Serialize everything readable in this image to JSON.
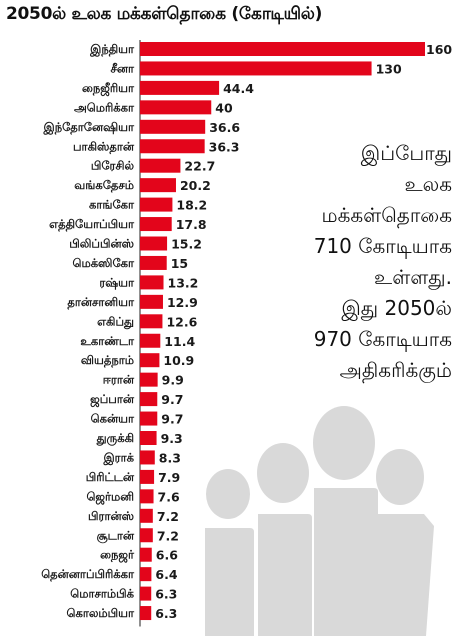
{
  "chart_data": {
    "type": "bar",
    "orientation": "horizontal",
    "title": "2050ல் உலக மக்கள்தொகை (கோடியில்)",
    "categories": [
      "இந்தியா",
      "சீனா",
      "நைஜீரியா",
      "அமெரிக்கா",
      "இந்தோனேஷியா",
      "பாகிஸ்தான்",
      "பிரேசில்",
      "வங்கதேசம்",
      "காங்கோ",
      "எத்தியோப்பியா",
      "பிலிப்பின்ஸ்",
      "மெக்ஸிகோ",
      "ரஷ்யா",
      "தான்சானியா",
      "எகிப்து",
      "உகாண்டா",
      "வியத்நாம்",
      "ஈரான்",
      "ஜப்பான்",
      "கென்யா",
      "துருக்கி",
      "இராக்",
      "பிரிட்டன்",
      "ஜெர்மனி",
      "பிரான்ஸ்",
      "சூடான்",
      "நைஜர்",
      "தென்னாப்பிரிக்கா",
      "மொசாம்பிக்",
      "கொலம்பியா"
    ],
    "values": [
      160,
      130,
      44.4,
      40,
      36.6,
      36.3,
      22.7,
      20.2,
      18.2,
      17.8,
      15.2,
      15,
      13.2,
      12.9,
      12.6,
      11.4,
      10.9,
      9.9,
      9.7,
      9.7,
      9.3,
      8.3,
      7.9,
      7.6,
      7.2,
      7.2,
      6.6,
      6.4,
      6.3,
      6.3
    ],
    "value_labels": [
      "160",
      "130",
      "44.4",
      "40",
      "36.6",
      "36.3",
      "22.7",
      "20.2",
      "18.2",
      "17.8",
      "15.2",
      "15",
      "13.2",
      "12.9",
      "12.6",
      "11.4",
      "10.9",
      "9.9",
      "9.7",
      "9.7",
      "9.3",
      "8.3",
      "7.9",
      "7.6",
      "7.2",
      "7.2",
      "6.6",
      "6.4",
      "6.3",
      "6.3"
    ],
    "bar_color": "#e3051b",
    "xlim": [
      0,
      160
    ],
    "grid": false,
    "legend": "none"
  },
  "annotation": {
    "lines": [
      "இப்போது",
      "உலக",
      "மக்கள்தொகை",
      "710 கோடியாக",
      "உள்ளது.",
      "இது 2050ல்",
      "970 கோடியாக",
      "அதிகரிக்கும்"
    ]
  },
  "decoration": {
    "people_color": "#d9d9d9",
    "people_icon": "people-group-icon"
  }
}
